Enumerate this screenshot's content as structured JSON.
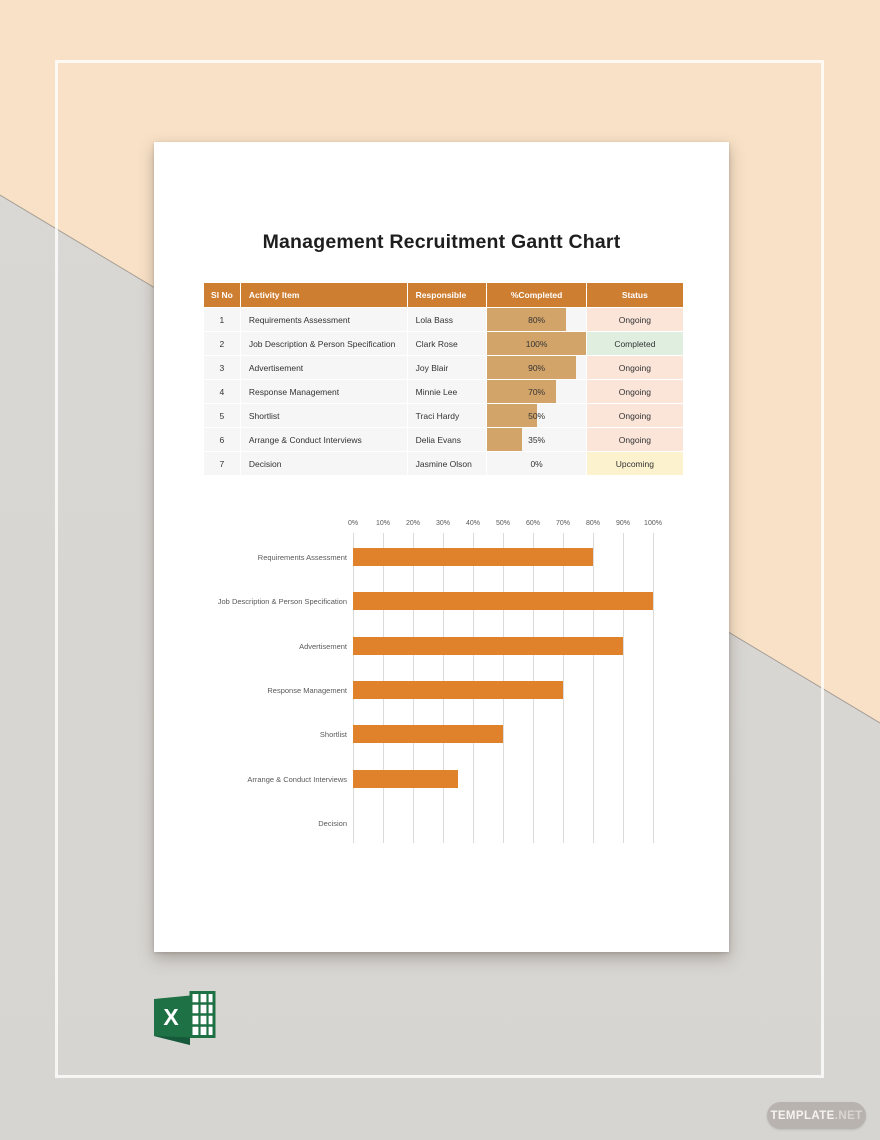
{
  "document": {
    "title": "Management Recruitment Gantt Chart"
  },
  "table": {
    "headers": [
      "Sl No",
      "Activity Item",
      "Responsible",
      "%Completed",
      "Status"
    ],
    "rows": [
      {
        "sl_no": "1",
        "activity": "Requirements Assessment",
        "responsible": "Lola Bass",
        "completed_pct": 80,
        "completed_label": "80%",
        "status": "Ongoing"
      },
      {
        "sl_no": "2",
        "activity": "Job Description & Person Specification",
        "responsible": "Clark Rose",
        "completed_pct": 100,
        "completed_label": "100%",
        "status": "Completed"
      },
      {
        "sl_no": "3",
        "activity": "Advertisement",
        "responsible": "Joy Blair",
        "completed_pct": 90,
        "completed_label": "90%",
        "status": "Ongoing"
      },
      {
        "sl_no": "4",
        "activity": "Response Management",
        "responsible": "Minnie Lee",
        "completed_pct": 70,
        "completed_label": "70%",
        "status": "Ongoing"
      },
      {
        "sl_no": "5",
        "activity": "Shortlist",
        "responsible": "Traci Hardy",
        "completed_pct": 50,
        "completed_label": "50%",
        "status": "Ongoing"
      },
      {
        "sl_no": "6",
        "activity": "Arrange & Conduct Interviews",
        "responsible": "Delia Evans",
        "completed_pct": 35,
        "completed_label": "35%",
        "status": "Ongoing"
      },
      {
        "sl_no": "7",
        "activity": "Decision",
        "responsible": "Jasmine Olson",
        "completed_pct": 0,
        "completed_label": "0%",
        "status": "Upcoming"
      }
    ]
  },
  "chart_data": {
    "type": "bar",
    "orientation": "horizontal",
    "title": "",
    "categories": [
      "Requirements Assessment",
      "Job Description & Person Specification",
      "Advertisement",
      "Response Management",
      "Shortlist",
      "Arrange & Conduct Interviews",
      "Decision"
    ],
    "values": [
      80,
      100,
      90,
      70,
      50,
      35,
      0
    ],
    "x_ticks": [
      "0%",
      "10%",
      "20%",
      "30%",
      "40%",
      "50%",
      "60%",
      "70%",
      "80%",
      "90%",
      "100%"
    ],
    "xlim": [
      0,
      100
    ],
    "grid": true,
    "legend": "none",
    "bar_color": "#E0812B"
  },
  "status_styles": {
    "Ongoing": "#FBE5D9",
    "Completed": "#DFEEDE",
    "Upcoming": "#FCF2CE"
  },
  "colors": {
    "table_header_bg": "#CE7E31",
    "progress_fill": "#D2A469",
    "chart_bar": "#E0812B",
    "background_peach": "#F8E1C6",
    "background_gray": "#D8D6D2",
    "excel_green": "#1E7145"
  },
  "watermark": {
    "bold": "TEMPLATE",
    "light": ".NET"
  },
  "icons": {
    "file_format": "excel-icon"
  }
}
